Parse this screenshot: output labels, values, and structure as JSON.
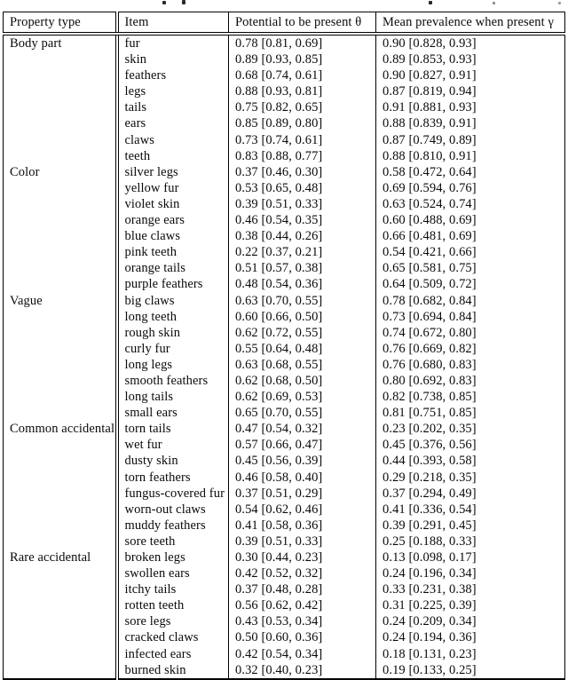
{
  "table": {
    "columns": [
      "Property type",
      "Item",
      "Potential to be present θ",
      "Mean prevalence when present γ"
    ],
    "groups": [
      {
        "property_type": "Body part",
        "rows": [
          {
            "item": "fur",
            "theta": "0.78 [0.81, 0.69]",
            "gamma": "0.90 [0.828, 0.93]"
          },
          {
            "item": "skin",
            "theta": "0.89 [0.93, 0.85]",
            "gamma": "0.89 [0.853, 0.93]"
          },
          {
            "item": "feathers",
            "theta": "0.68 [0.74, 0.61]",
            "gamma": "0.90 [0.827, 0.91]"
          },
          {
            "item": "legs",
            "theta": "0.88 [0.93, 0.81]",
            "gamma": "0.87 [0.819, 0.94]"
          },
          {
            "item": "tails",
            "theta": "0.75 [0.82, 0.65]",
            "gamma": "0.91 [0.881, 0.93]"
          },
          {
            "item": "ears",
            "theta": "0.85 [0.89, 0.80]",
            "gamma": "0.88 [0.839, 0.91]"
          },
          {
            "item": "claws",
            "theta": "0.73 [0.74, 0.61]",
            "gamma": "0.87 [0.749, 0.89]"
          },
          {
            "item": "teeth",
            "theta": "0.83 [0.88, 0.77]",
            "gamma": "0.88 [0.810, 0.91]"
          }
        ]
      },
      {
        "property_type": "Color",
        "rows": [
          {
            "item": "silver legs",
            "theta": "0.37 [0.46, 0.30]",
            "gamma": "0.58 [0.472, 0.64]"
          },
          {
            "item": "yellow fur",
            "theta": "0.53 [0.65, 0.48]",
            "gamma": "0.69 [0.594, 0.76]"
          },
          {
            "item": "violet skin",
            "theta": "0.39 [0.51, 0.33]",
            "gamma": "0.63 [0.524, 0.74]"
          },
          {
            "item": "orange ears",
            "theta": "0.46 [0.54, 0.35]",
            "gamma": "0.60 [0.488, 0.69]"
          },
          {
            "item": "blue claws",
            "theta": "0.38 [0.44, 0.26]",
            "gamma": "0.66 [0.481, 0.69]"
          },
          {
            "item": "pink teeth",
            "theta": "0.22 [0.37, 0.21]",
            "gamma": "0.54 [0.421, 0.66]"
          },
          {
            "item": "orange tails",
            "theta": "0.51 [0.57, 0.38]",
            "gamma": "0.65 [0.581, 0.75]"
          },
          {
            "item": "purple feathers",
            "theta": "0.48 [0.54, 0.36]",
            "gamma": "0.64 [0.509, 0.72]"
          }
        ]
      },
      {
        "property_type": "Vague",
        "rows": [
          {
            "item": "big claws",
            "theta": "0.63 [0.70, 0.55]",
            "gamma": "0.78 [0.682, 0.84]"
          },
          {
            "item": "long teeth",
            "theta": "0.60 [0.66, 0.50]",
            "gamma": "0.73 [0.694, 0.84]"
          },
          {
            "item": "rough skin",
            "theta": "0.62 [0.72, 0.55]",
            "gamma": "0.74 [0.672, 0.80]"
          },
          {
            "item": "curly fur",
            "theta": "0.55 [0.64, 0.48]",
            "gamma": "0.76 [0.669, 0.82]"
          },
          {
            "item": "long legs",
            "theta": "0.63 [0.68, 0.55]",
            "gamma": "0.76 [0.680, 0.83]"
          },
          {
            "item": "smooth feathers",
            "theta": "0.62 [0.68, 0.50]",
            "gamma": "0.80 [0.692, 0.83]"
          },
          {
            "item": "long tails",
            "theta": "0.62 [0.69, 0.53]",
            "gamma": "0.82 [0.738, 0.85]"
          },
          {
            "item": "small ears",
            "theta": "0.65 [0.70, 0.55]",
            "gamma": "0.81 [0.751, 0.85]"
          }
        ]
      },
      {
        "property_type": "Common accidental",
        "rows": [
          {
            "item": "torn tails",
            "theta": "0.47 [0.54, 0.32]",
            "gamma": "0.23 [0.202, 0.35]"
          },
          {
            "item": "wet fur",
            "theta": "0.57 [0.66, 0.47]",
            "gamma": "0.45 [0.376, 0.56]"
          },
          {
            "item": "dusty skin",
            "theta": "0.45 [0.56, 0.39]",
            "gamma": "0.44 [0.393, 0.58]"
          },
          {
            "item": "torn feathers",
            "theta": "0.46 [0.58, 0.40]",
            "gamma": "0.29 [0.218, 0.35]"
          },
          {
            "item": "fungus-covered fur",
            "theta": "0.37 [0.51, 0.29]",
            "gamma": "0.37 [0.294, 0.49]"
          },
          {
            "item": "worn-out claws",
            "theta": "0.54 [0.62, 0.46]",
            "gamma": "0.41 [0.336, 0.54]"
          },
          {
            "item": "muddy feathers",
            "theta": "0.41 [0.58, 0.36]",
            "gamma": "0.39 [0.291, 0.45]"
          },
          {
            "item": "sore teeth",
            "theta": "0.39 [0.51, 0.33]",
            "gamma": "0.25 [0.188, 0.33]"
          }
        ]
      },
      {
        "property_type": "Rare accidental",
        "rows": [
          {
            "item": "broken legs",
            "theta": "0.30 [0.44, 0.23]",
            "gamma": "0.13 [0.098, 0.17]"
          },
          {
            "item": "swollen ears",
            "theta": "0.42 [0.52, 0.32]",
            "gamma": "0.24 [0.196, 0.34]"
          },
          {
            "item": "itchy tails",
            "theta": "0.37 [0.48, 0.28]",
            "gamma": "0.33 [0.231, 0.38]"
          },
          {
            "item": "rotten teeth",
            "theta": "0.56 [0.62, 0.42]",
            "gamma": "0.31 [0.225, 0.39]"
          },
          {
            "item": "sore legs",
            "theta": "0.43 [0.53, 0.34]",
            "gamma": "0.24 [0.209, 0.34]"
          },
          {
            "item": "cracked claws",
            "theta": "0.50 [0.60, 0.36]",
            "gamma": "0.24 [0.194, 0.36]"
          },
          {
            "item": "infected ears",
            "theta": "0.42 [0.54, 0.34]",
            "gamma": "0.18 [0.131, 0.23]"
          },
          {
            "item": "burned skin",
            "theta": "0.32 [0.40, 0.23]",
            "gamma": "0.19 [0.133, 0.25]"
          }
        ]
      }
    ]
  },
  "colors": {
    "border": "#000000",
    "text": "#0a0a0a",
    "background": "#ffffff"
  }
}
